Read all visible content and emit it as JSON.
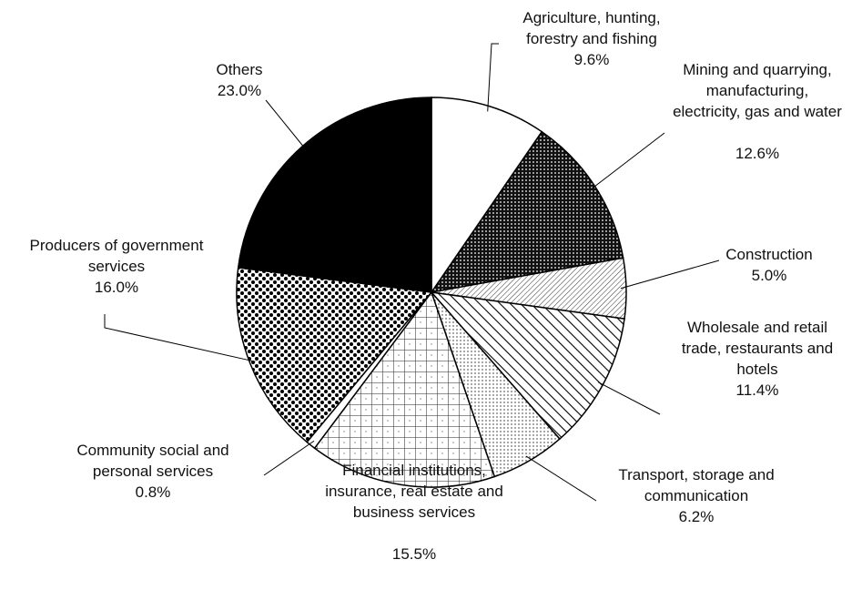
{
  "chart_data": {
    "type": "pie",
    "categories": [
      "Agriculture, hunting, forestry and fishing",
      "Mining and quarrying, manufacturing, electricity, gas and water",
      "Construction",
      "Wholesale and retail trade, restaurants and hotels",
      "Transport, storage and communication",
      "Financial institutions, insurance, real estate and business services",
      "Community social and personal services",
      "Producers of government services",
      "Others"
    ],
    "values": [
      9.6,
      12.6,
      5.0,
      11.4,
      6.2,
      15.5,
      0.8,
      16.0,
      23.0
    ],
    "value_labels": [
      "9.6%",
      "12.6%",
      "5.0%",
      "11.4%",
      "6.2%",
      "15.5%",
      "0.8%",
      "16.0%",
      "23.0%"
    ],
    "colors": [
      "#ffffff",
      "#222222",
      "#dddddd",
      "#ffffff",
      "#f2f2f2",
      "#ffffff",
      "#ffffff",
      "#e0e0e0",
      "#000000"
    ]
  }
}
